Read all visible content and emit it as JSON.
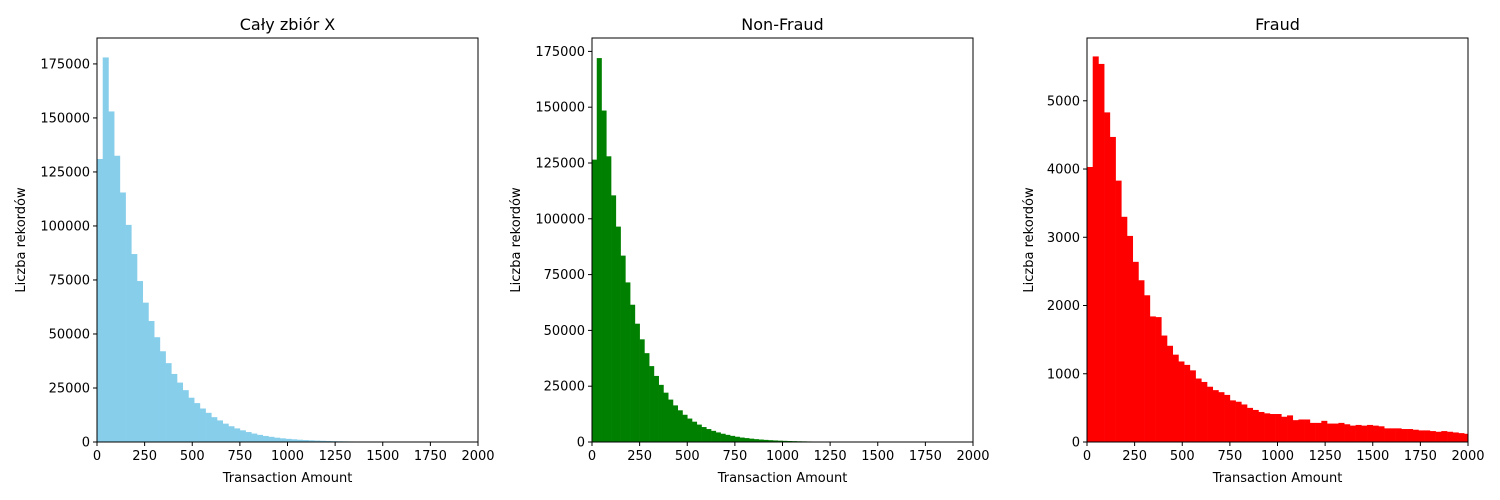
{
  "chart_data": [
    {
      "type": "bar",
      "title": "Cały zbiór X",
      "xlabel": "Transaction Amount",
      "ylabel": "Liczba rekordów",
      "xlim": [
        0,
        2000
      ],
      "ylim": [
        0,
        187000
      ],
      "xticks": [
        0,
        250,
        500,
        750,
        1000,
        1250,
        1500,
        1750,
        2000
      ],
      "yticks": [
        0,
        25000,
        50000,
        75000,
        100000,
        125000,
        150000,
        175000
      ],
      "color": "#87ceeb",
      "bin_width": 30,
      "values": [
        131000,
        178000,
        153000,
        132500,
        115500,
        100500,
        87000,
        74500,
        64500,
        56000,
        48500,
        42000,
        36500,
        31500,
        27500,
        24000,
        20500,
        18000,
        15500,
        13500,
        11500,
        10000,
        8500,
        7300,
        6300,
        5400,
        4600,
        3900,
        3300,
        2800,
        2400,
        2000,
        1700,
        1450,
        1250,
        1050,
        900,
        780,
        660,
        560,
        480,
        400,
        340,
        290,
        250,
        220,
        190,
        160,
        140,
        120,
        100,
        90,
        80,
        70,
        60,
        50,
        45,
        40,
        35,
        30,
        28,
        25,
        22,
        20,
        18,
        16,
        15
      ]
    },
    {
      "type": "bar",
      "title": "Non-Fraud",
      "xlabel": "Transaction Amount",
      "ylabel": "Liczba rekordów",
      "xlim": [
        0,
        2000
      ],
      "ylim": [
        0,
        181000
      ],
      "xticks": [
        0,
        250,
        500,
        750,
        1000,
        1250,
        1500,
        1750,
        2000
      ],
      "yticks": [
        0,
        25000,
        50000,
        75000,
        100000,
        125000,
        150000,
        175000
      ],
      "color": "#008000",
      "bin_width": 25,
      "values": [
        126500,
        172000,
        148500,
        128000,
        110500,
        96500,
        83500,
        71500,
        61500,
        53000,
        46000,
        39800,
        34000,
        29600,
        25600,
        22100,
        19000,
        16400,
        14200,
        12200,
        10500,
        9100,
        7800,
        6700,
        5800,
        5000,
        4300,
        3700,
        3200,
        2750,
        2350,
        2000,
        1750,
        1500,
        1280,
        1100,
        950,
        820,
        700,
        600,
        520,
        450,
        390,
        330,
        290,
        250,
        210,
        180,
        160,
        140,
        120,
        100,
        90,
        80,
        70,
        60,
        50,
        45,
        40,
        35,
        30,
        25
      ]
    },
    {
      "type": "bar",
      "title": "Fraud",
      "xlabel": "Transaction Amount",
      "ylabel": "Liczba rekordów",
      "xlim": [
        0,
        2000
      ],
      "ylim": [
        0,
        5920
      ],
      "xticks": [
        0,
        250,
        500,
        750,
        1000,
        1250,
        1500,
        1750,
        2000
      ],
      "yticks": [
        0,
        1000,
        2000,
        3000,
        4000,
        5000
      ],
      "color": "#ff0000",
      "bin_width": 30,
      "values": [
        4030,
        5650,
        5540,
        4830,
        4470,
        3830,
        3300,
        3020,
        2640,
        2370,
        2150,
        1840,
        1830,
        1560,
        1410,
        1280,
        1180,
        1130,
        1050,
        930,
        880,
        810,
        760,
        730,
        690,
        610,
        590,
        550,
        500,
        470,
        440,
        420,
        410,
        410,
        370,
        390,
        320,
        330,
        330,
        280,
        280,
        310,
        270,
        270,
        280,
        260,
        240,
        250,
        240,
        250,
        240,
        230,
        200,
        200,
        200,
        190,
        190,
        180,
        170,
        170,
        160,
        150,
        160,
        150,
        140,
        130,
        120
      ]
    }
  ]
}
